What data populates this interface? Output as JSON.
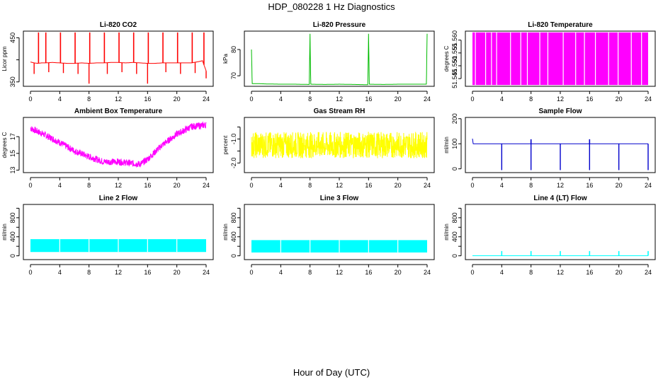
{
  "page": {
    "title": "HDP_080228  1 Hz Diagnostics",
    "xlabel": "Hour of Day (UTC)"
  },
  "x_axis": {
    "ticks": [
      "0",
      "4",
      "8",
      "12",
      "16",
      "20",
      "24"
    ],
    "range": [
      0,
      24
    ]
  },
  "chart_data": [
    {
      "type": "line",
      "title": "Li-820 CO2",
      "ylabel": "Licor ppm",
      "color": "#ff0000",
      "ylim": [
        340,
        465
      ],
      "yticks": [
        350,
        400,
        450
      ],
      "ytick_labels": [
        "350",
        "",
        "450"
      ],
      "x": [
        0,
        0.5,
        1,
        1.5,
        2,
        3,
        4,
        5,
        6,
        7,
        8,
        9,
        10,
        11,
        12,
        13,
        14,
        15,
        16,
        17,
        18,
        19,
        20,
        21,
        22,
        23,
        23.5,
        24
      ],
      "values": [
        395,
        393,
        392,
        393,
        393,
        394,
        393,
        392,
        392,
        393,
        392,
        393,
        393,
        394,
        394,
        393,
        394,
        393,
        392,
        392,
        393,
        393,
        393,
        393,
        393,
        396,
        398,
        375
      ],
      "spikes_up_x": [
        1.1,
        2.1,
        4.1,
        6.1,
        8.1,
        10.1,
        12.1,
        14.1,
        16.1,
        18.1,
        20.1,
        22.1,
        23.7
      ],
      "spikes_up_to": 462,
      "spikes_down_x": [
        0.5,
        2.5,
        4.5,
        6.5,
        8.0,
        10.5,
        12.5,
        14.5,
        16.0,
        18.5,
        20.5,
        22.5,
        24.0
      ],
      "spikes_down_to": [
        368,
        372,
        370,
        368,
        346,
        368,
        372,
        368,
        346,
        372,
        368,
        370,
        358
      ]
    },
    {
      "type": "line",
      "title": "Li-820 Pressure",
      "ylabel": "kPa",
      "color": "#00bb00",
      "ylim": [
        66,
        87
      ],
      "yticks": [
        70,
        80
      ],
      "ytick_labels": [
        "70",
        "80"
      ],
      "x": [
        0,
        0.1,
        1,
        2,
        4,
        6,
        7.9,
        8,
        8.1,
        10,
        12,
        14,
        15.9,
        16,
        16.1,
        18,
        20,
        22,
        23.9,
        24
      ],
      "values": [
        80,
        67,
        67,
        66.9,
        66.8,
        66.8,
        66.7,
        86,
        66.8,
        66.7,
        66.8,
        66.7,
        66.6,
        86,
        66.8,
        66.7,
        66.8,
        66.8,
        66.8,
        86
      ]
    },
    {
      "type": "area",
      "title": "Li-820 Temperature",
      "ylabel": "degrees C",
      "color": "#ff00ff",
      "ylim": [
        51.542,
        51.5635
      ],
      "yticks": [
        51.545,
        51.55,
        51.555,
        51.56
      ],
      "ytick_labels": [
        "51.545",
        "51.550",
        "51.555",
        "51.560"
      ],
      "top": 51.563,
      "bottom": 51.5425,
      "gaps_x": [
        0.4,
        1.8,
        2.6,
        3.3,
        5.2,
        6.6,
        7.5,
        9.2,
        10.3,
        12.4,
        14.1,
        15.3,
        16.8,
        18.6,
        19.9,
        21.7,
        23.1
      ]
    },
    {
      "type": "line",
      "title": "Ambient Box Temperature",
      "ylabel": "degrees C",
      "color": "#ff00ff",
      "ylim": [
        12.7,
        19.3
      ],
      "yticks": [
        13,
        15,
        17
      ],
      "ytick_labels": [
        "13",
        "15",
        "17"
      ],
      "x": [
        0,
        2,
        4,
        6,
        8,
        10,
        12,
        14,
        15,
        16,
        18,
        20,
        22,
        24
      ],
      "values": [
        18.0,
        17.2,
        16.3,
        15.3,
        14.6,
        14.0,
        14.0,
        13.8,
        13.7,
        14.3,
        16.0,
        17.3,
        18.2,
        18.4
      ],
      "noise": 0.4
    },
    {
      "type": "line",
      "title": "Gas Stream RH",
      "ylabel": "percent",
      "color": "#ffff00",
      "ylim": [
        -2.4,
        -0.1
      ],
      "yticks": [
        -2.0,
        -1.5,
        -1.0,
        -0.5
      ],
      "ytick_labels": [
        "-2.0",
        "",
        "-1.0",
        ""
      ],
      "x": [
        0,
        24
      ],
      "values": [
        -1.25,
        -1.25
      ],
      "noise": 0.55
    },
    {
      "type": "line",
      "title": "Sample Flow",
      "ylabel": "ml/min",
      "color": "#0000cc",
      "ylim": [
        -15,
        205
      ],
      "yticks": [
        0,
        100,
        200
      ],
      "ytick_labels": [
        "0",
        "100",
        "200"
      ],
      "x": [
        0,
        0.1,
        0.2,
        4,
        8,
        12,
        16,
        20,
        24
      ],
      "values": [
        120,
        100,
        100,
        100,
        100,
        100,
        100,
        100,
        100
      ],
      "spikes_up_x": [
        8,
        16
      ],
      "spikes_up_to": 118,
      "spikes_down_x": [
        4,
        8,
        12,
        16,
        20,
        24
      ],
      "spikes_down_to": [
        -5,
        -5,
        -5,
        -5,
        -5,
        -5
      ]
    },
    {
      "type": "area",
      "title": "Line 2 Flow",
      "ylabel": "ml/min",
      "color": "#00ffff",
      "ylim": [
        -80,
        1080
      ],
      "yticks": [
        0,
        200,
        400,
        600,
        800,
        1000
      ],
      "ytick_labels": [
        "0",
        "",
        "400",
        "",
        "800",
        ""
      ],
      "top": 350,
      "bottom": 80,
      "gaps_x": [
        4,
        8,
        12,
        16,
        20
      ]
    },
    {
      "type": "area",
      "title": "Line 3 Flow",
      "ylabel": "ml/min",
      "color": "#00ffff",
      "ylim": [
        -80,
        1080
      ],
      "yticks": [
        0,
        200,
        400,
        600,
        800,
        1000
      ],
      "ytick_labels": [
        "0",
        "",
        "400",
        "",
        "800",
        ""
      ],
      "top": 330,
      "bottom": 70,
      "gaps_x": [
        4,
        8,
        12,
        16,
        20
      ]
    },
    {
      "type": "line",
      "title": "Line 4 (LT) Flow",
      "ylabel": "ml/min",
      "color": "#00ffff",
      "ylim": [
        -80,
        1080
      ],
      "yticks": [
        0,
        200,
        400,
        600,
        800,
        1000
      ],
      "ytick_labels": [
        "0",
        "",
        "400",
        "",
        "800",
        ""
      ],
      "x": [
        0,
        24
      ],
      "values": [
        2,
        2
      ],
      "spikes_up_x": [
        4,
        8,
        12,
        16,
        20,
        24
      ],
      "spikes_up_to": 100
    }
  ]
}
